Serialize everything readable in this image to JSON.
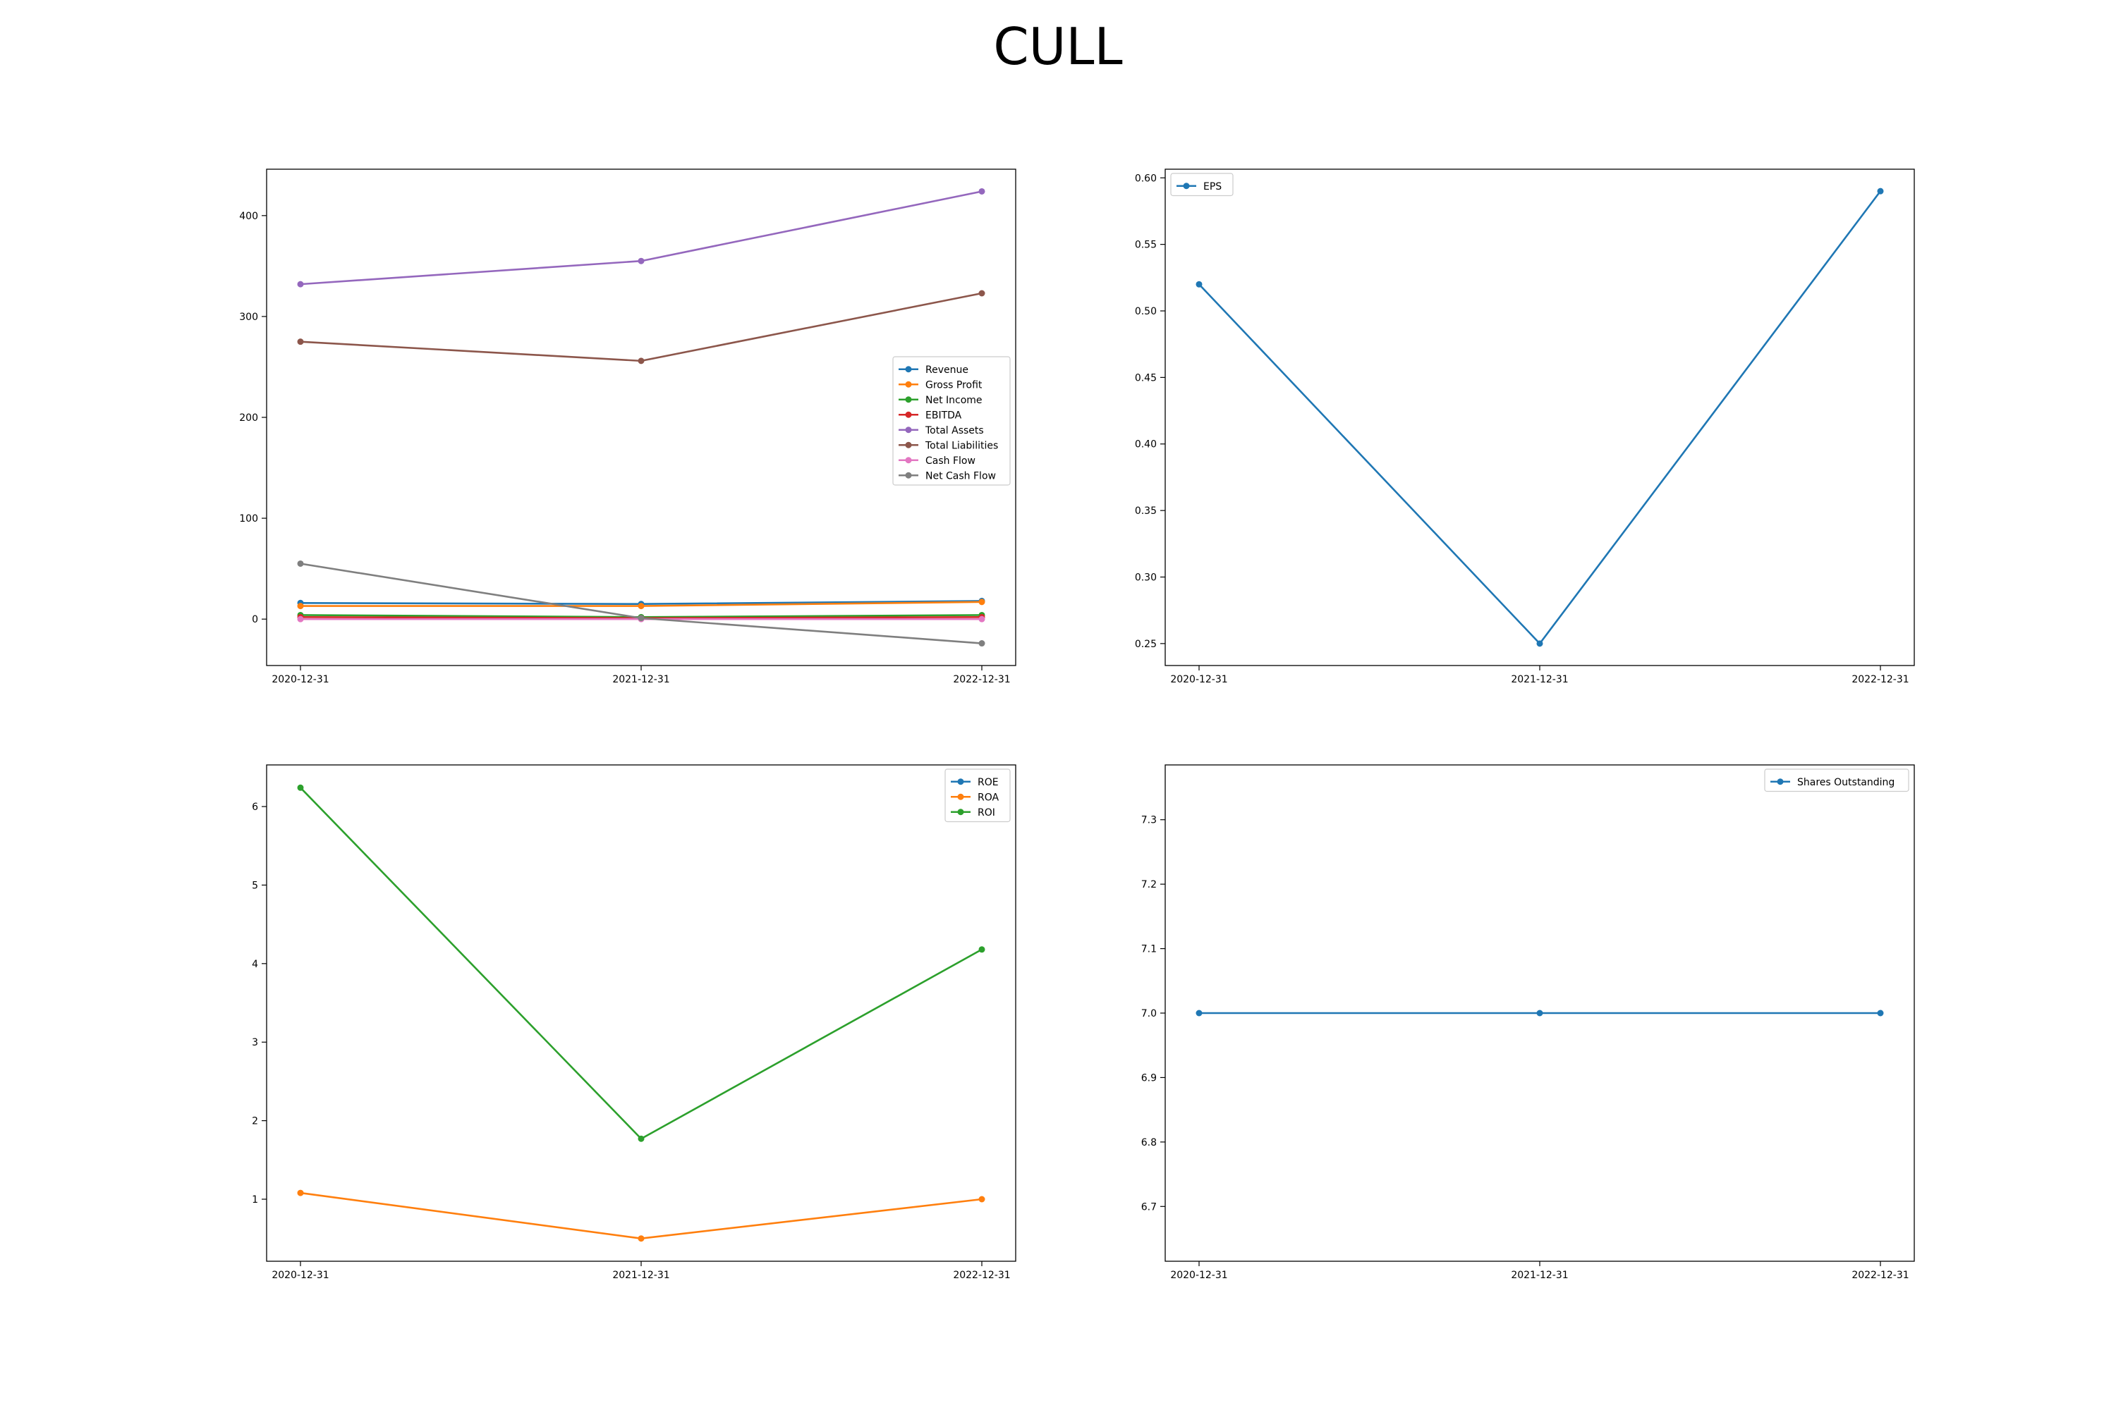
{
  "figure": {
    "title": "CULL"
  },
  "colors": {
    "blue": "#1f77b4",
    "orange": "#ff7f0e",
    "green": "#2ca02c",
    "red": "#d62728",
    "purple": "#9467bd",
    "brown": "#8c564b",
    "pink": "#e377c2",
    "gray": "#7f7f7f"
  },
  "chart_data": [
    {
      "type": "line",
      "x": [
        "2020-12-31",
        "2021-12-31",
        "2022-12-31"
      ],
      "series": [
        {
          "name": "Revenue",
          "color": "#1f77b4",
          "values": [
            16,
            15,
            18
          ]
        },
        {
          "name": "Gross Profit",
          "color": "#ff7f0e",
          "values": [
            13,
            13,
            17
          ]
        },
        {
          "name": "Net Income",
          "color": "#2ca02c",
          "values": [
            4,
            2,
            4
          ]
        },
        {
          "name": "EBITDA",
          "color": "#d62728",
          "values": [
            2,
            1,
            2
          ]
        },
        {
          "name": "Total Assets",
          "color": "#9467bd",
          "values": [
            332,
            355,
            424
          ]
        },
        {
          "name": "Total Liabilities",
          "color": "#8c564b",
          "values": [
            275,
            256,
            323
          ]
        },
        {
          "name": "Cash Flow",
          "color": "#e377c2",
          "values": [
            0,
            0,
            0
          ]
        },
        {
          "name": "Net Cash Flow",
          "color": "#7f7f7f",
          "values": [
            55,
            1,
            -24
          ]
        }
      ],
      "ylim": [
        -46,
        446
      ],
      "yticks": [
        0,
        100,
        200,
        300,
        400
      ],
      "ytick_labels": [
        "0",
        "100",
        "200",
        "300",
        "400"
      ],
      "legend": "center-right",
      "grid": false
    },
    {
      "type": "line",
      "x": [
        "2020-12-31",
        "2021-12-31",
        "2022-12-31"
      ],
      "series": [
        {
          "name": "EPS",
          "color": "#1f77b4",
          "values": [
            0.52,
            0.25,
            0.59
          ]
        }
      ],
      "ylim": [
        0.2335,
        0.6065
      ],
      "yticks": [
        0.25,
        0.3,
        0.35,
        0.4,
        0.45,
        0.5,
        0.55,
        0.6
      ],
      "ytick_labels": [
        "0.25",
        "0.30",
        "0.35",
        "0.40",
        "0.45",
        "0.50",
        "0.55",
        "0.60"
      ],
      "legend": "top-left",
      "grid": false
    },
    {
      "type": "line",
      "x": [
        "2020-12-31",
        "2021-12-31",
        "2022-12-31"
      ],
      "series": [
        {
          "name": "ROE",
          "color": "#1f77b4",
          "values": [
            null,
            null,
            null
          ]
        },
        {
          "name": "ROA",
          "color": "#ff7f0e",
          "values": [
            1.08,
            0.5,
            1.0
          ]
        },
        {
          "name": "ROI",
          "color": "#2ca02c",
          "values": [
            6.24,
            1.77,
            4.18
          ]
        }
      ],
      "ylim": [
        0.21,
        6.53
      ],
      "yticks": [
        1,
        2,
        3,
        4,
        5,
        6
      ],
      "ytick_labels": [
        "1",
        "2",
        "3",
        "4",
        "5",
        "6"
      ],
      "legend": "top-right",
      "grid": false
    },
    {
      "type": "line",
      "x": [
        "2020-12-31",
        "2021-12-31",
        "2022-12-31"
      ],
      "series": [
        {
          "name": "Shares Outstanding",
          "color": "#1f77b4",
          "values": [
            7.0,
            7.0,
            7.0
          ]
        }
      ],
      "ylim": [
        6.615,
        7.385
      ],
      "yticks": [
        6.7,
        6.8,
        6.9,
        7.0,
        7.1,
        7.2,
        7.3
      ],
      "ytick_labels": [
        "6.7",
        "6.8",
        "6.9",
        "7.0",
        "7.1",
        "7.2",
        "7.3"
      ],
      "legend": "top-right",
      "grid": false
    }
  ]
}
